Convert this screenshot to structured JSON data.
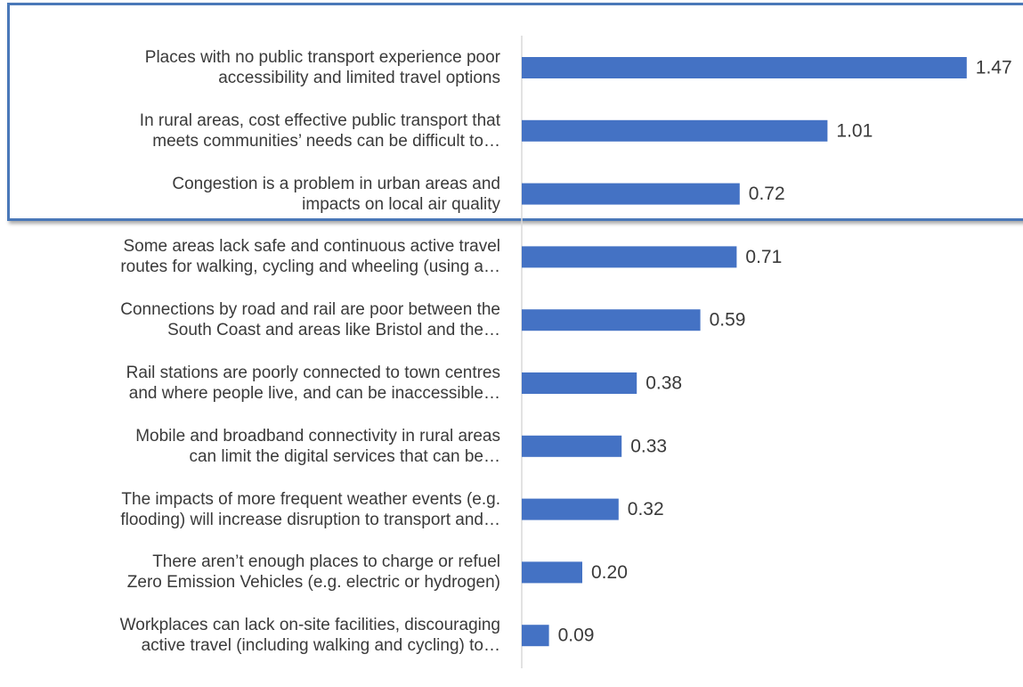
{
  "chart_data": {
    "type": "barh",
    "categories": [
      "Places with no public transport experience poor\naccessibility and limited travel options",
      "In rural areas, cost effective public transport that\nmeets communities’ needs can be difficult to…",
      "Congestion is a problem in urban areas and\nimpacts on local air quality",
      "Some areas lack safe and continuous active travel\nroutes for walking, cycling and wheeling (using a…",
      "Connections by road and rail are poor between the\nSouth Coast and areas like Bristol and the…",
      "Rail stations are poorly connected to town centres\nand where people live, and can be inaccessible…",
      "Mobile and broadband connectivity in rural areas\ncan limit the digital services that can be…",
      "The impacts of more frequent weather events (e.g.\nflooding) will increase disruption to transport and…",
      "There aren’t enough places to charge or refuel\nZero Emission Vehicles (e.g. electric or hydrogen)",
      "Workplaces can lack on-site facilities, discouraging\nactive travel (including walking and cycling) to…"
    ],
    "values": [
      1.47,
      1.01,
      0.72,
      0.71,
      0.59,
      0.38,
      0.33,
      0.32,
      0.2,
      0.09
    ],
    "value_labels": [
      "1.47",
      "1.01",
      "0.72",
      "0.71",
      "0.59",
      "0.38",
      "0.33",
      "0.32",
      "0.20",
      "0.09"
    ],
    "color": "#4472c4",
    "xlim": [
      0,
      1.65
    ]
  }
}
